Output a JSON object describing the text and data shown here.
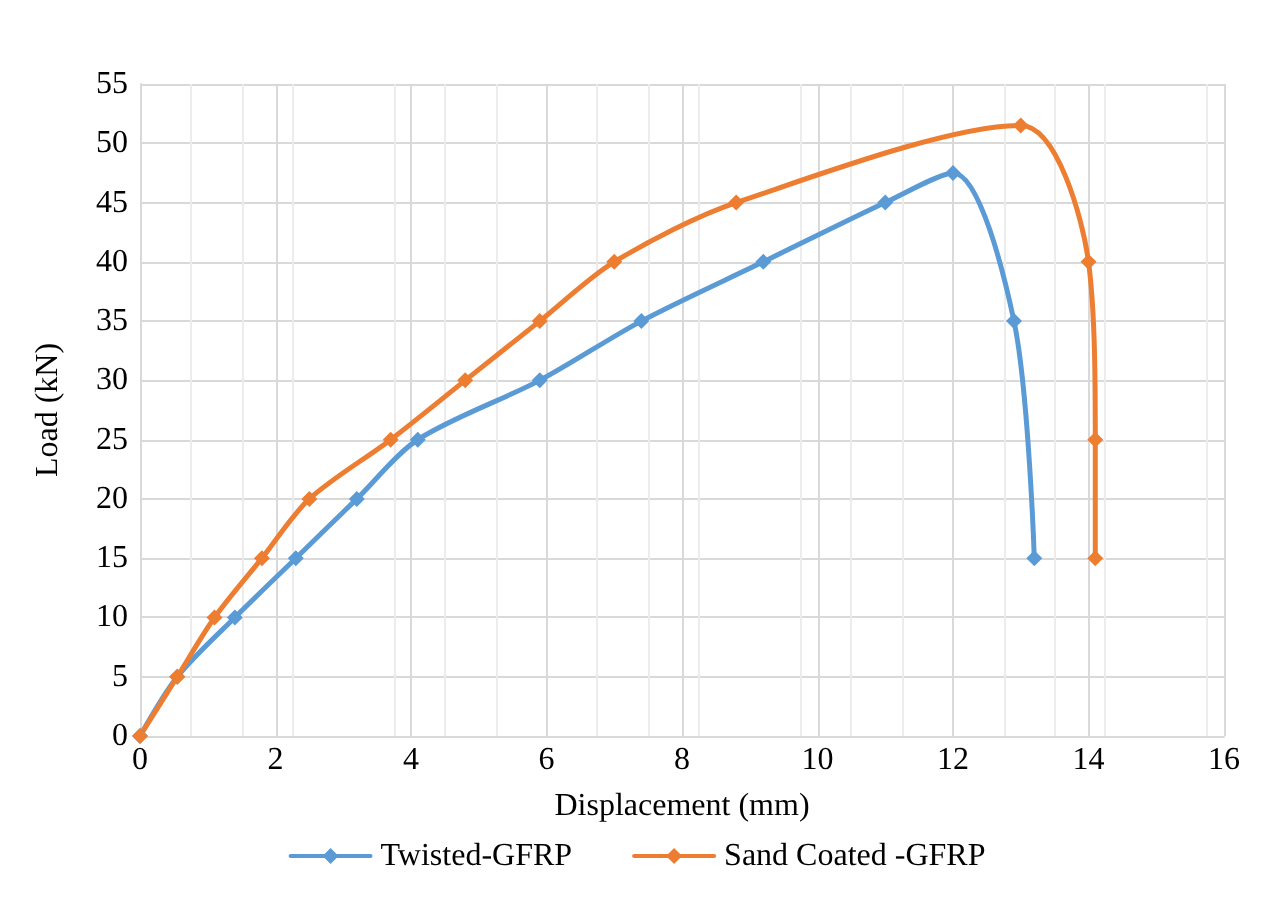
{
  "chart_data": {
    "type": "line",
    "xlabel": "Displacement (mm)",
    "ylabel": "Load (kN)",
    "xlim": [
      0,
      16
    ],
    "xticks": [
      0,
      2,
      4,
      6,
      8,
      10,
      12,
      14,
      16
    ],
    "ylim": [
      0,
      55
    ],
    "yticks": [
      0,
      5,
      10,
      15,
      20,
      25,
      30,
      35,
      40,
      45,
      50,
      55
    ],
    "grid": true,
    "legend": "bottom",
    "marker": "diamond",
    "line_style": "solid",
    "series": [
      {
        "name": "Twisted-GFRP",
        "color": "#5b9bd5",
        "x": [
          0,
          0.55,
          1.4,
          2.3,
          3.2,
          4.1,
          5.9,
          7.4,
          9.2,
          11,
          12,
          12.9,
          13.2
        ],
        "values": [
          0,
          5,
          10,
          15,
          20,
          25,
          30,
          35,
          40,
          45,
          47.5,
          35,
          15
        ]
      },
      {
        "name": "Sand Coated -GFRP",
        "color": "#ed7d31",
        "x": [
          0,
          0.55,
          1.1,
          1.8,
          2.5,
          3.7,
          4.8,
          5.9,
          7,
          8.8,
          13,
          14,
          14.1,
          14.1
        ],
        "values": [
          0,
          5,
          10,
          15,
          20,
          25,
          30,
          35,
          40,
          45,
          51.5,
          40,
          25,
          15
        ]
      }
    ]
  }
}
